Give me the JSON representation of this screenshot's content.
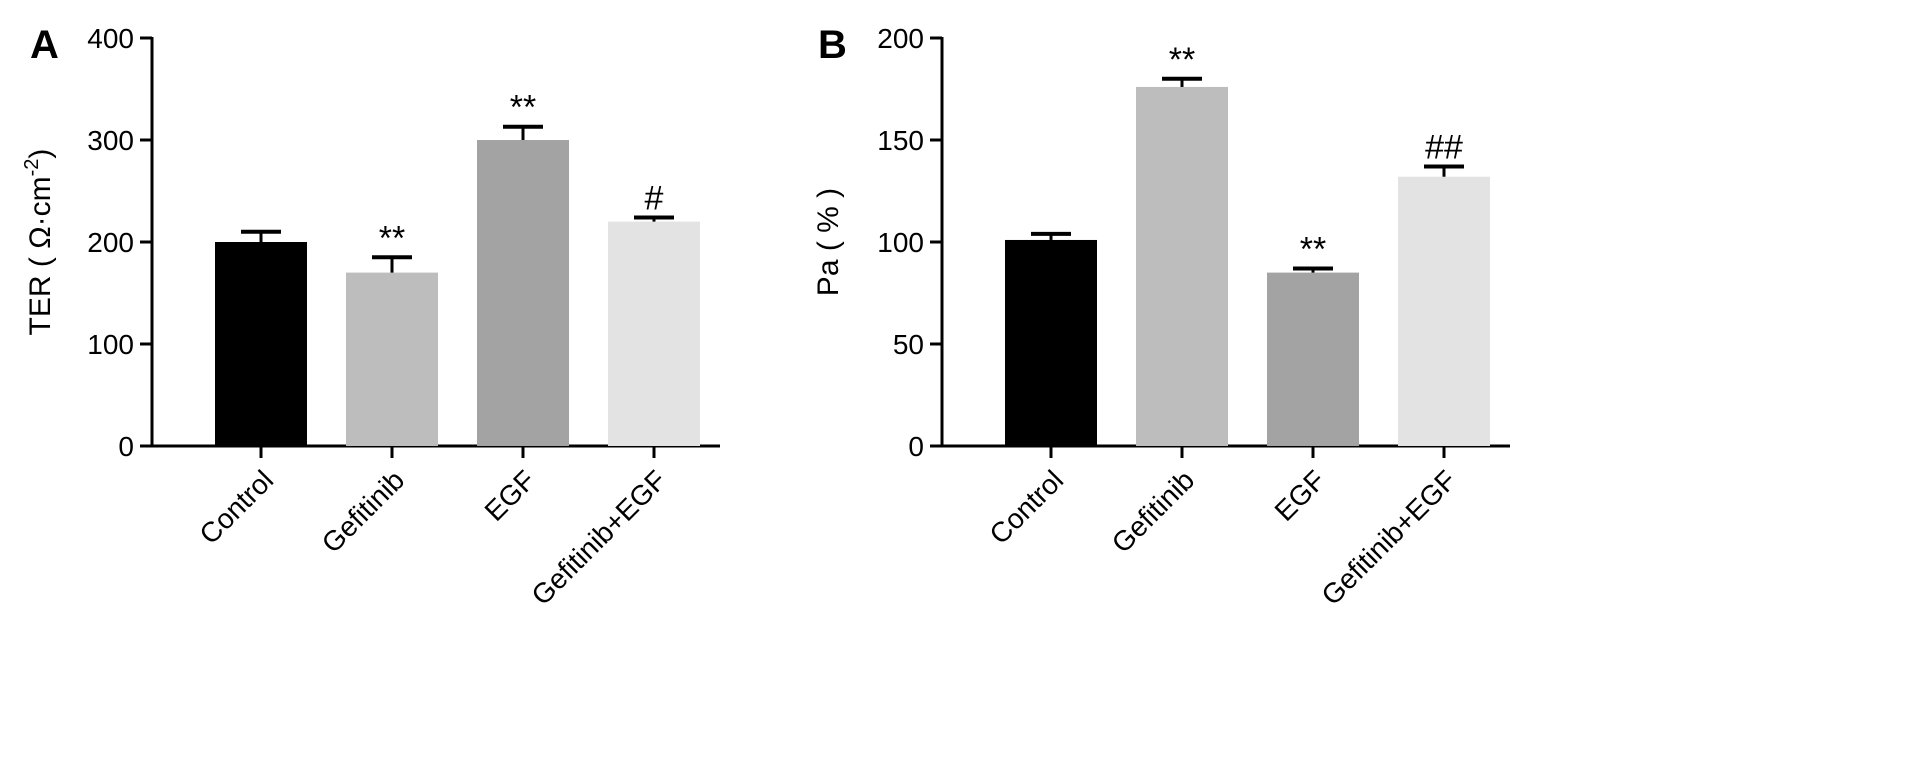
{
  "chart_data": [
    {
      "type": "bar",
      "panel": "A",
      "categories": [
        "Control",
        "Gefitinib",
        "EGF",
        "Gefitinib+EGF"
      ],
      "values": [
        200,
        170,
        300,
        220
      ],
      "errors": [
        10,
        15,
        13,
        4
      ],
      "annotations": [
        "",
        "**",
        "**",
        "#"
      ],
      "colors": [
        "#000000",
        "#bdbdbd",
        "#a3a3a3",
        "#e3e3e3"
      ],
      "ylabel": {
        "prefix": "TER ( Ω·cm",
        "sup": "-2",
        "suffix": ")"
      },
      "ylim": [
        0,
        400
      ],
      "yticks": [
        0,
        100,
        200,
        300,
        400
      ],
      "grid": false
    },
    {
      "type": "bar",
      "panel": "B",
      "categories": [
        "Control",
        "Gefitinib",
        "EGF",
        "Gefitinib+EGF"
      ],
      "values": [
        101,
        176,
        85,
        132
      ],
      "errors": [
        3,
        4,
        2,
        5
      ],
      "annotations": [
        "",
        "**",
        "**",
        "##"
      ],
      "colors": [
        "#000000",
        "#bdbdbd",
        "#a3a3a3",
        "#e3e3e3"
      ],
      "ylabel": {
        "prefix": "Pa ( % )",
        "sup": "",
        "suffix": ""
      },
      "ylim": [
        0,
        200
      ],
      "yticks": [
        0,
        50,
        100,
        150,
        200
      ],
      "grid": false
    }
  ]
}
